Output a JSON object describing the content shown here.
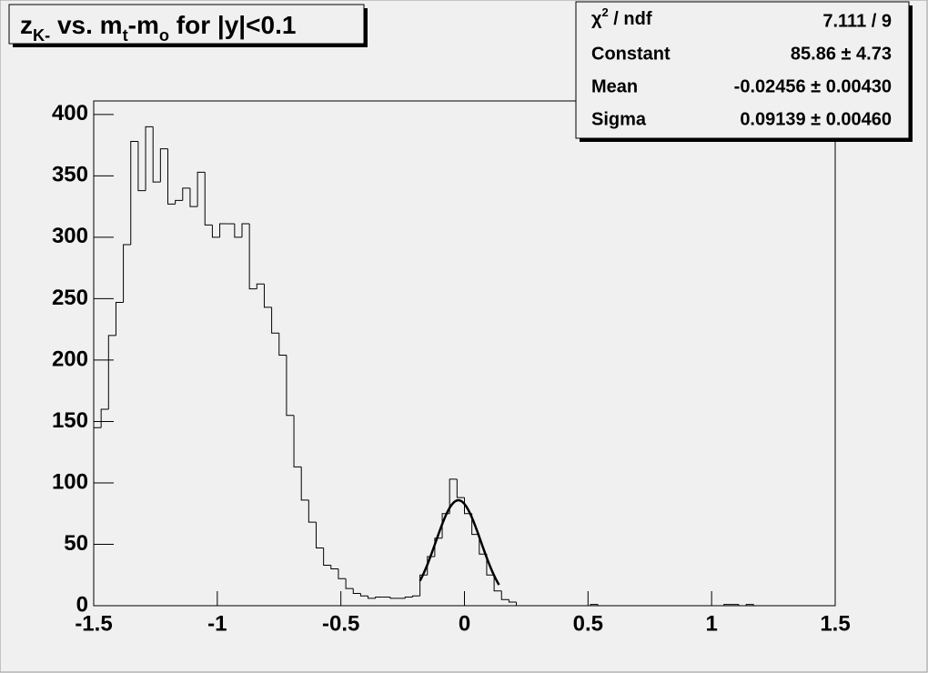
{
  "chart_data": {
    "type": "histogram",
    "title_parts": [
      {
        "text": "z"
      },
      {
        "text": "K-",
        "sub": true
      },
      {
        "text": " vs. m"
      },
      {
        "text": "t",
        "sub": true
      },
      {
        "text": "-m"
      },
      {
        "text": "o",
        "sub": true
      },
      {
        "text": " for |y|<0.1"
      }
    ],
    "bins": [
      -1.5,
      -1.47,
      -1.44,
      -1.41,
      -1.38,
      -1.35,
      -1.32,
      -1.29,
      -1.26,
      -1.23,
      -1.2,
      -1.17,
      -1.14,
      -1.11,
      -1.08,
      -1.05,
      -1.02,
      -0.99,
      -0.96,
      -0.93,
      -0.9,
      -0.87,
      -0.84,
      -0.81,
      -0.78,
      -0.75,
      -0.72,
      -0.69,
      -0.66,
      -0.63,
      -0.6,
      -0.57,
      -0.54,
      -0.51,
      -0.48,
      -0.45,
      -0.42,
      -0.39,
      -0.36,
      -0.33,
      -0.3,
      -0.27,
      -0.24,
      -0.21,
      -0.18,
      -0.15,
      -0.12,
      -0.09,
      -0.06,
      -0.03,
      0,
      0.03,
      0.06,
      0.09,
      0.12,
      0.15,
      0.18,
      0.21,
      0.24,
      0.27,
      0.3,
      0.33,
      0.36,
      0.39,
      0.42,
      0.45,
      0.48,
      0.51,
      0.54,
      0.57,
      0.6,
      0.63,
      0.66,
      0.69,
      0.72,
      0.75,
      0.78,
      0.81,
      0.84,
      0.87,
      0.9,
      0.93,
      0.96,
      0.99,
      1.02,
      1.05,
      1.08,
      1.11,
      1.14,
      1.17,
      1.2,
      1.23,
      1.26,
      1.29,
      1.32,
      1.35,
      1.38,
      1.41,
      1.44,
      1.47,
      1.5
    ],
    "values": [
      145,
      160,
      220,
      247,
      294,
      378,
      338,
      390,
      345,
      372,
      327,
      330,
      340,
      325,
      353,
      310,
      300,
      311,
      311,
      300,
      311,
      258,
      262,
      243,
      222,
      204,
      155,
      113,
      86,
      68,
      47,
      33,
      30,
      22,
      14,
      10,
      8,
      6,
      7,
      7,
      6,
      6,
      7,
      8,
      25,
      40,
      55,
      75,
      103,
      88,
      75,
      58,
      42,
      25,
      12,
      5,
      3,
      0,
      0,
      0,
      0,
      0,
      0,
      0,
      0,
      0,
      0,
      1,
      0,
      0,
      0,
      0,
      0,
      0,
      0,
      0,
      0,
      0,
      0,
      0,
      0,
      0,
      0,
      0,
      0,
      1,
      1,
      0,
      1,
      0,
      0,
      0,
      0,
      0,
      0,
      0,
      0,
      0,
      0,
      0
    ],
    "color": "#000000",
    "xlim": [
      -1.5,
      1.5
    ],
    "xticks": [
      -1.5,
      -1,
      -0.5,
      0,
      0.5,
      1,
      1.5
    ],
    "ylim": [
      0,
      411
    ],
    "yticks": [
      0,
      50,
      100,
      150,
      200,
      250,
      300,
      350,
      400
    ],
    "fit": {
      "constant": 85.86,
      "mean": -0.02456,
      "sigma": 0.09139
    },
    "stats": {
      "header_parts": [
        {
          "text": "χ"
        },
        {
          "text": "2",
          "sup": true
        },
        {
          "text": " / ndf"
        }
      ],
      "header_value": "7.111 / 9",
      "rows": [
        {
          "name": "Constant",
          "value": 85.86,
          "label": "85.86 ± 4.73"
        },
        {
          "name": "Mean",
          "value": -0.02456,
          "label": "-0.02456 ± 0.00430"
        },
        {
          "name": "Sigma",
          "value": 0.09139,
          "label": "0.09139 ± 0.00460"
        }
      ]
    }
  }
}
